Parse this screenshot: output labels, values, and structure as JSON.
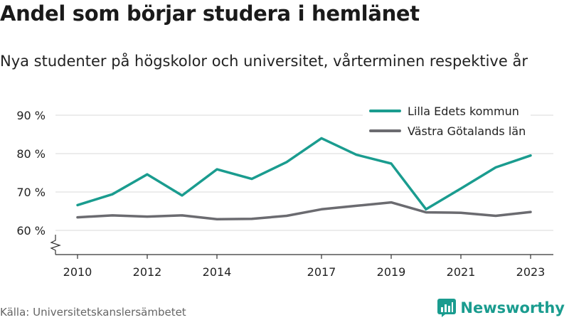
{
  "header": {
    "title": "Andel som börjar studera i hemlänet",
    "subtitle": "Nya studenter på högskolor och universitet, vårterminen respektive år"
  },
  "footer": {
    "source": "Källa: Universitetskanslersämbetet",
    "brand": "Newsworthy"
  },
  "colors": {
    "series_primary": "#1a9c8f",
    "series_secondary": "#6b6b70",
    "grid": "#d9d9d9",
    "axis": "#333333"
  },
  "chart_data": {
    "type": "line",
    "title": "Andel som börjar studera i hemlänet",
    "subtitle": "Nya studenter på högskolor och universitet, vårterminen respektive år",
    "x": [
      2010,
      2011,
      2012,
      2013,
      2014,
      2015,
      2016,
      2017,
      2018,
      2019,
      2020,
      2021,
      2022,
      2023
    ],
    "x_tick_values": [
      2010,
      2012,
      2014,
      2017,
      2019,
      2021,
      2023
    ],
    "x_tick_labels": [
      "2010",
      "2012",
      "2014",
      "2017",
      "2019",
      "2021",
      "2023"
    ],
    "y_tick_values": [
      60,
      70,
      80,
      90
    ],
    "y_tick_labels": [
      "60 %",
      "70 %",
      "80 %",
      "90 %"
    ],
    "ylim": [
      55,
      92
    ],
    "y_axis_break": true,
    "grid": "horizontal",
    "legend_position": "top-right",
    "series": [
      {
        "name": "Lilla Edets kommun",
        "color": "#1a9c8f",
        "values": [
          66.6,
          69.4,
          74.6,
          69.1,
          75.9,
          73.4,
          77.8,
          84.0,
          79.7,
          77.4,
          65.5,
          70.9,
          76.4,
          79.5
        ]
      },
      {
        "name": "Västra Götalands län",
        "color": "#6b6b70",
        "values": [
          63.4,
          63.9,
          63.6,
          63.9,
          62.9,
          63.0,
          63.8,
          65.5,
          66.4,
          67.3,
          64.7,
          64.6,
          63.8,
          64.8
        ]
      }
    ]
  }
}
